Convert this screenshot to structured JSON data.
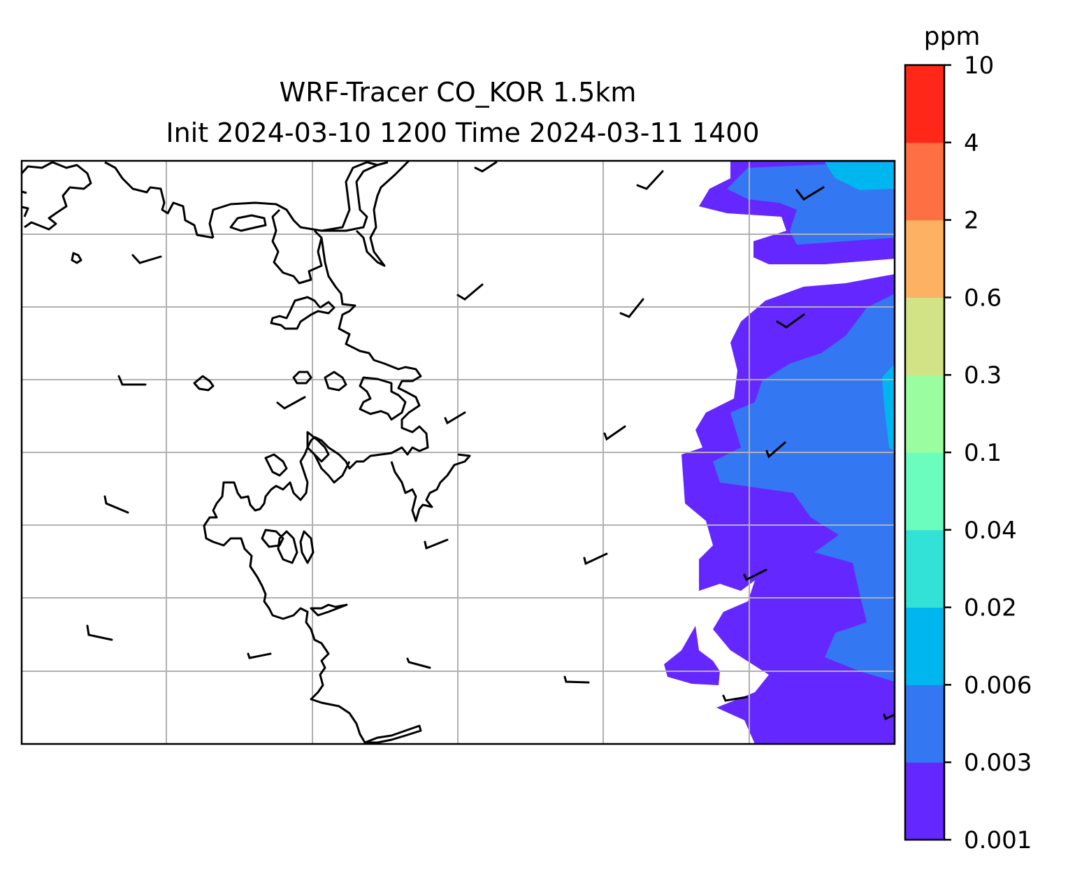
{
  "title_lines": [
    "WRF-Tracer CO_KOR 1.5km",
    "Init 2024-03-10 1200 Time 2024-03-11 1400"
  ],
  "colorbar": {
    "unit": "ppm",
    "levels": [
      "0.001",
      "0.003",
      "0.006",
      "0.02",
      "0.04",
      "0.1",
      "0.3",
      "0.6",
      "2",
      "4",
      "10"
    ],
    "colors": [
      "#6527FF",
      "#3377F2",
      "#00B6EE",
      "#33E2D6",
      "#6BFDBD",
      "#9AFD9F",
      "#D2E386",
      "#FDB163",
      "#FE7043",
      "#FF2818"
    ]
  },
  "map": {
    "gridlines": true,
    "coastline_color": "#000000",
    "wind_barbs_present": true
  }
}
